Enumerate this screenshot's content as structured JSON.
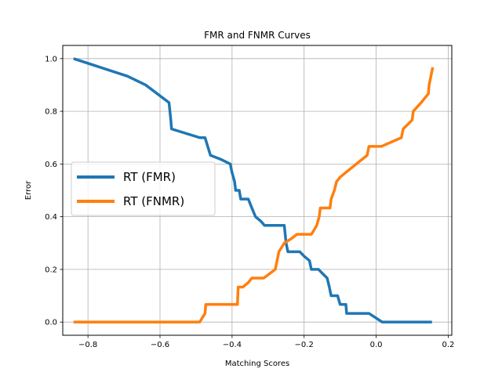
{
  "chart_data": {
    "type": "line",
    "title": "FMR and FNMR Curves",
    "xlabel": "Matching Scores",
    "ylabel": "Error",
    "xlim": [
      -0.87,
      0.21
    ],
    "ylim": [
      -0.05,
      1.05
    ],
    "xticks": [
      -0.8,
      -0.6,
      -0.4,
      -0.2,
      0.0,
      0.2
    ],
    "xtick_labels": [
      "−0.8",
      "−0.6",
      "−0.4",
      "−0.2",
      "0.0",
      "0.2"
    ],
    "yticks": [
      0.0,
      0.2,
      0.4,
      0.6,
      0.8,
      1.0
    ],
    "ytick_labels": [
      "0.0",
      "0.2",
      "0.4",
      "0.6",
      "0.8",
      "1.0"
    ],
    "grid": true,
    "legend_position": "center-left",
    "series": [
      {
        "name": "RT (FMR)",
        "color": "#1f77b4",
        "points": [
          [
            -0.84,
            1.0
          ],
          [
            -0.69,
            0.933
          ],
          [
            -0.64,
            0.9
          ],
          [
            -0.575,
            0.833
          ],
          [
            -0.57,
            0.767
          ],
          [
            -0.568,
            0.733
          ],
          [
            -0.49,
            0.7
          ],
          [
            -0.475,
            0.7
          ],
          [
            -0.46,
            0.633
          ],
          [
            -0.43,
            0.617
          ],
          [
            -0.405,
            0.6
          ],
          [
            -0.4,
            0.567
          ],
          [
            -0.393,
            0.533
          ],
          [
            -0.39,
            0.5
          ],
          [
            -0.38,
            0.5
          ],
          [
            -0.376,
            0.467
          ],
          [
            -0.355,
            0.467
          ],
          [
            -0.345,
            0.433
          ],
          [
            -0.335,
            0.4
          ],
          [
            -0.32,
            0.383
          ],
          [
            -0.31,
            0.367
          ],
          [
            -0.255,
            0.367
          ],
          [
            -0.25,
            0.3
          ],
          [
            -0.245,
            0.267
          ],
          [
            -0.212,
            0.267
          ],
          [
            -0.2,
            0.25
          ],
          [
            -0.185,
            0.233
          ],
          [
            -0.18,
            0.2
          ],
          [
            -0.16,
            0.2
          ],
          [
            -0.148,
            0.183
          ],
          [
            -0.136,
            0.167
          ],
          [
            -0.13,
            0.133
          ],
          [
            -0.125,
            0.1
          ],
          [
            -0.107,
            0.1
          ],
          [
            -0.1,
            0.067
          ],
          [
            -0.084,
            0.067
          ],
          [
            -0.082,
            0.033
          ],
          [
            -0.02,
            0.033
          ],
          [
            0.017,
            0.0
          ],
          [
            0.155,
            0.0
          ]
        ]
      },
      {
        "name": "RT (FNMR)",
        "color": "#ff7f0e",
        "points": [
          [
            -0.84,
            0.0
          ],
          [
            -0.49,
            0.0
          ],
          [
            -0.475,
            0.033
          ],
          [
            -0.473,
            0.067
          ],
          [
            -0.385,
            0.067
          ],
          [
            -0.383,
            0.133
          ],
          [
            -0.37,
            0.133
          ],
          [
            -0.355,
            0.15
          ],
          [
            -0.345,
            0.167
          ],
          [
            -0.312,
            0.167
          ],
          [
            -0.28,
            0.2
          ],
          [
            -0.27,
            0.267
          ],
          [
            -0.255,
            0.3
          ],
          [
            -0.235,
            0.317
          ],
          [
            -0.22,
            0.333
          ],
          [
            -0.18,
            0.333
          ],
          [
            -0.172,
            0.35
          ],
          [
            -0.165,
            0.367
          ],
          [
            -0.158,
            0.4
          ],
          [
            -0.155,
            0.433
          ],
          [
            -0.128,
            0.433
          ],
          [
            -0.125,
            0.467
          ],
          [
            -0.116,
            0.5
          ],
          [
            -0.11,
            0.533
          ],
          [
            -0.1,
            0.55
          ],
          [
            -0.085,
            0.567
          ],
          [
            -0.025,
            0.633
          ],
          [
            -0.02,
            0.667
          ],
          [
            0.015,
            0.667
          ],
          [
            0.07,
            0.7
          ],
          [
            0.075,
            0.733
          ],
          [
            0.1,
            0.767
          ],
          [
            0.103,
            0.8
          ],
          [
            0.125,
            0.833
          ],
          [
            0.145,
            0.867
          ],
          [
            0.147,
            0.9
          ],
          [
            0.152,
            0.933
          ],
          [
            0.157,
            0.967
          ]
        ]
      }
    ]
  }
}
